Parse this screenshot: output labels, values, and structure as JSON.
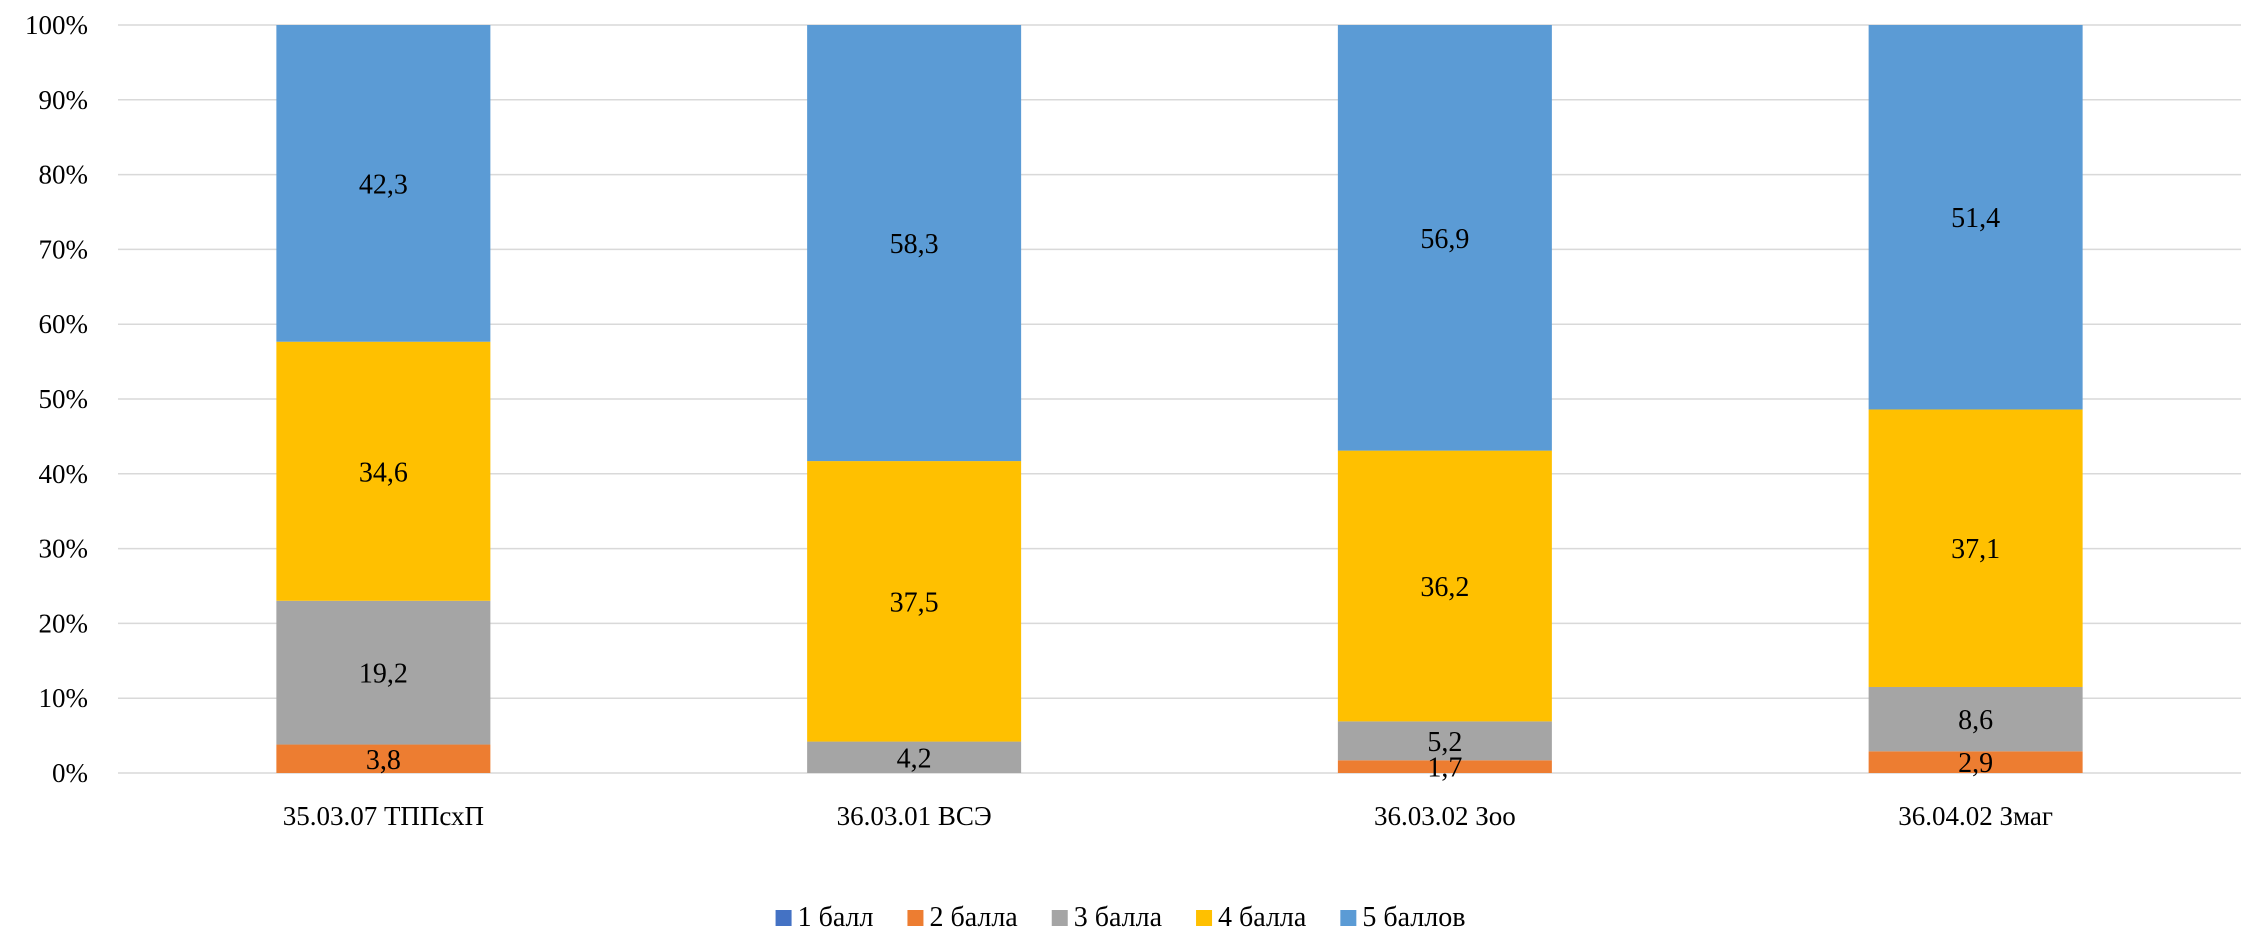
{
  "chart_data": {
    "type": "bar",
    "stacked": true,
    "percent_stacked": true,
    "categories": [
      "35.03.07 ТППсхП",
      "36.03.01 ВСЭ",
      "36.03.02 Зоо",
      "36.04.02 Змаг"
    ],
    "series": [
      {
        "name": "1 балл",
        "color": "#4472c4",
        "values": [
          0,
          0,
          0,
          0
        ],
        "labels": [
          "",
          "",
          "",
          ""
        ]
      },
      {
        "name": "2 балла",
        "color": "#ed7d31",
        "values": [
          3.8,
          0,
          1.7,
          2.9
        ],
        "labels": [
          "3,8",
          "",
          "1,7",
          "2,9"
        ]
      },
      {
        "name": "3 балла",
        "color": "#a5a5a5",
        "values": [
          19.2,
          4.2,
          5.2,
          8.6
        ],
        "labels": [
          "19,2",
          "4,2",
          "5,2",
          "8,6"
        ]
      },
      {
        "name": "4 балла",
        "color": "#ffc000",
        "values": [
          34.6,
          37.5,
          36.2,
          37.1
        ],
        "labels": [
          "34,6",
          "37,5",
          "36,2",
          "37,1"
        ]
      },
      {
        "name": "5 баллов",
        "color": "#5b9bd5",
        "values": [
          42.3,
          58.3,
          56.9,
          51.4
        ],
        "labels": [
          "42,3",
          "58,3",
          "56,9",
          "51,4"
        ]
      }
    ],
    "y_ticks": [
      "0%",
      "10%",
      "20%",
      "30%",
      "40%",
      "50%",
      "60%",
      "70%",
      "80%",
      "90%",
      "100%"
    ],
    "ylim": [
      0,
      100
    ],
    "grid": true,
    "legend_position": "bottom",
    "title": "",
    "xlabel": "",
    "ylabel": ""
  }
}
